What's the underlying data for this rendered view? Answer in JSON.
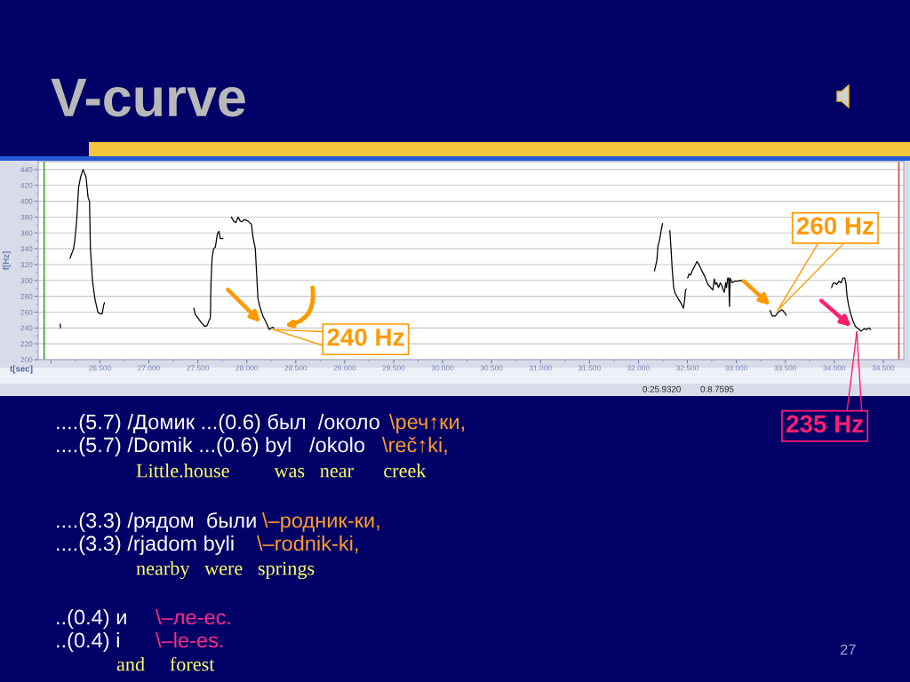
{
  "chart_data": {
    "type": "line",
    "title": "V-curve",
    "xlabel": "t[sec]",
    "ylabel": "f[Hz]",
    "series": [
      {
        "color": "#000000",
        "x": [
          26.095,
          26.098,
          26.15,
          26.195,
          26.231,
          26.244,
          26.262,
          26.283,
          26.304,
          26.328,
          26.358,
          26.379,
          26.394,
          26.403,
          26.425,
          26.449,
          26.479,
          26.5,
          26.524,
          26.539,
          26.548,
          27.0,
          27.459,
          27.474,
          27.505,
          27.535,
          27.571,
          27.595,
          27.616,
          27.628,
          27.634,
          27.646,
          27.661,
          27.679,
          27.7,
          27.715,
          27.73,
          27.745,
          27.757,
          27.81,
          27.842,
          27.866,
          27.888,
          27.912,
          27.933,
          27.951,
          27.975,
          28.011,
          28.048,
          28.063,
          28.087,
          28.102,
          28.114,
          28.138,
          28.168,
          28.198,
          28.229,
          28.25,
          28.265,
          28.274,
          29.0,
          32.164,
          32.188,
          32.2,
          32.216,
          32.231,
          32.246,
          32.28,
          32.321,
          32.333,
          32.345,
          32.36,
          32.375,
          32.406,
          32.436,
          32.46,
          32.472,
          32.481,
          32.49,
          32.497,
          32.503,
          32.515,
          32.533,
          32.557,
          32.582,
          32.597,
          32.618,
          32.648,
          32.678,
          32.709,
          32.739,
          32.76,
          32.775,
          32.787,
          32.8,
          32.818,
          32.836,
          32.854,
          32.866,
          32.878,
          32.891,
          32.899,
          32.912,
          32.921,
          32.93,
          32.936,
          32.957,
          32.981,
          33.011,
          33.042,
          33.066,
          33.2,
          33.344,
          33.368,
          33.398,
          33.429,
          33.465,
          33.489,
          33.51,
          33.7,
          33.973,
          33.986,
          34.004,
          34.025,
          34.049,
          34.07,
          34.088,
          34.107,
          34.119,
          34.131,
          34.146,
          34.167,
          34.191,
          34.215,
          34.245,
          34.276,
          34.306,
          34.33,
          34.354,
          34.373
        ],
        "values": [
          245,
          240,
          null,
          328,
          340,
          351,
          374,
          418,
          431,
          440,
          431,
          405,
          400,
          340,
          299,
          277,
          260,
          258,
          258,
          269,
          272,
          null,
          265,
          257,
          252,
          247,
          242,
          243,
          250,
          252,
          295,
          329,
          340,
          342,
          359,
          362,
          353,
          353,
          353,
          null,
          380,
          375,
          373,
          380,
          375,
          374,
          377,
          375,
          371,
          355,
          340,
          306,
          277,
          265,
          254,
          247,
          238,
          240,
          241,
          240,
          null,
          312,
          325,
          344,
          351,
          362,
          372,
          null,
          363,
          340,
          314,
          291,
          284,
          277,
          271,
          265,
          275,
          288,
          289,
          null,
          303,
          308,
          307,
          314,
          320,
          324,
          320,
          312,
          305,
          295,
          291,
          288,
          302,
          295,
          297,
          291,
          297,
          293,
          288,
          285,
          297,
          291,
          303,
          303,
          267,
          303,
          297,
          299,
          299,
          300,
          299,
          null,
          262,
          255,
          255,
          260,
          263,
          260,
          256,
          null,
          291,
          296,
          297,
          295,
          299,
          297,
          303,
          303,
          297,
          280,
          269,
          258,
          249,
          242,
          239,
          236,
          239,
          238,
          240,
          238
        ]
      }
    ],
    "xlim": [
      25.87,
      34.71
    ],
    "ylim": [
      200,
      450
    ],
    "xticks": [
      {
        "value": 26.0,
        "label": null
      },
      {
        "value": 26.5,
        "label": "26.500"
      },
      {
        "value": 27.0,
        "label": "27.000"
      },
      {
        "value": 27.5,
        "label": "27.500"
      },
      {
        "value": 28.0,
        "label": "28.000"
      },
      {
        "value": 28.5,
        "label": "28.500"
      },
      {
        "value": 29.0,
        "label": "29.000"
      },
      {
        "value": 29.5,
        "label": "29.500"
      },
      {
        "value": 30.0,
        "label": "30.000"
      },
      {
        "value": 30.5,
        "label": "30.500"
      },
      {
        "value": 31.0,
        "label": "31.000"
      },
      {
        "value": 31.5,
        "label": "31.500"
      },
      {
        "value": 32.0,
        "label": "32.000"
      },
      {
        "value": 32.5,
        "label": "32.500"
      },
      {
        "value": 33.0,
        "label": "33.000"
      },
      {
        "value": 33.5,
        "label": "33.500"
      },
      {
        "value": 34.0,
        "label": "34.000"
      },
      {
        "value": 34.5,
        "label": "34.500"
      }
    ],
    "yticks": [
      200,
      220,
      240,
      260,
      280,
      300,
      320,
      340,
      360,
      380,
      400,
      420,
      440
    ],
    "grid": "y",
    "ref_lines": [
      {
        "axis": "x",
        "value": 25.93,
        "color": "#3a9f3a"
      },
      {
        "axis": "x",
        "value": 34.66,
        "color": "#e04040"
      }
    ],
    "annotations": [
      {
        "text": "240 Hz",
        "x": 28.27,
        "y": 238
      },
      {
        "text": "260 Hz",
        "x": 33.42,
        "y": 262
      },
      {
        "text": "235 Hz",
        "x": 34.23,
        "y": 235
      },
      "0:25.9320",
      "0:8.7595",
      "....(5.7) /Домик ...(0.6) был  /около",
      "\\реч↑ки,",
      "....(5.7) /Domik ...(0.6) byl   /okolo",
      "\\reč↑ki,",
      "Little.house         was   near      creek",
      "....(3.3) /рядом  были",
      "\\–родник-ки,",
      "....(3.3) /rjadom byli",
      "\\–rodnik-ki,",
      "nearby   were   springs",
      "..(0.4) и",
      "\\–ле-ес.",
      "..(0.4) i",
      "\\–le-es.",
      "and     forest",
      "27"
    ]
  }
}
